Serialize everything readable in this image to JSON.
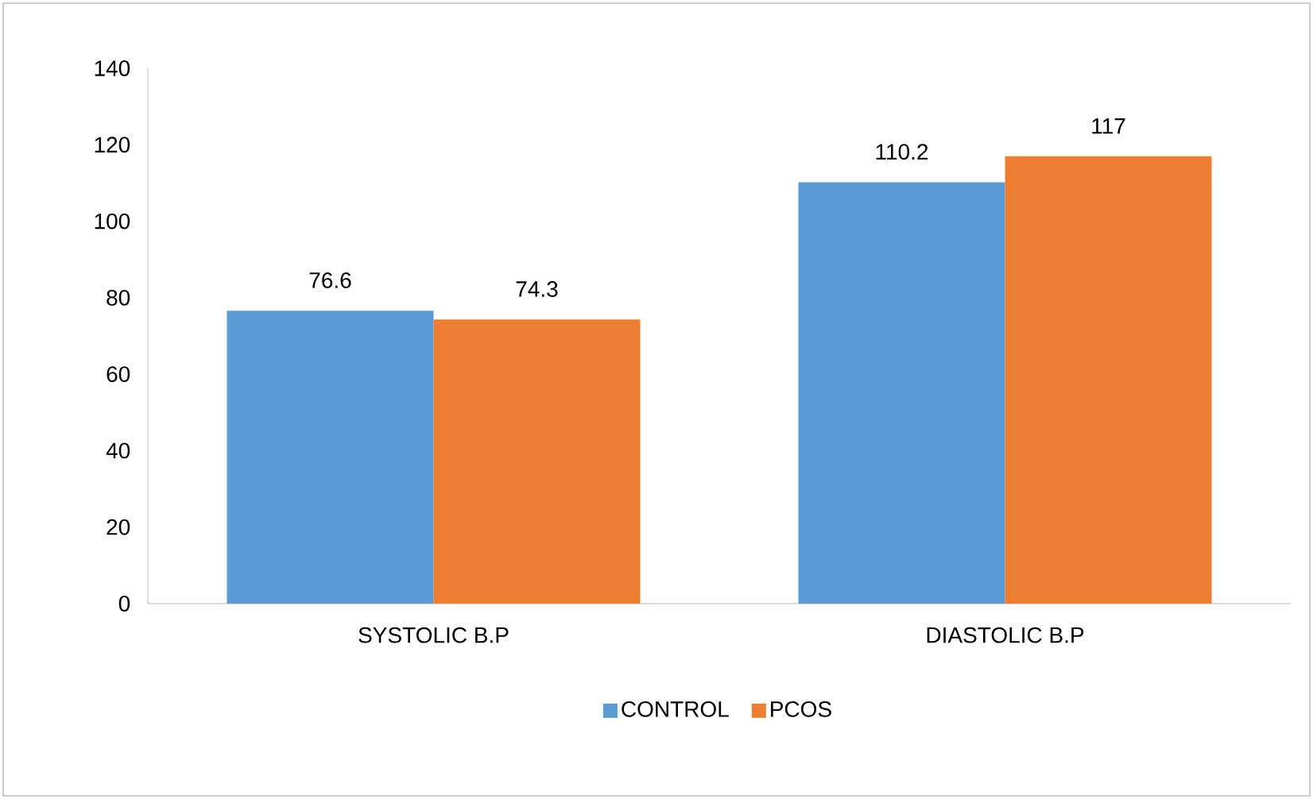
{
  "chart_data": {
    "type": "bar",
    "categories": [
      "SYSTOLIC B.P",
      "DIASTOLIC B.P"
    ],
    "series": [
      {
        "name": "CONTROL",
        "color": "#5b9bd5",
        "values": [
          76.6,
          110.2
        ]
      },
      {
        "name": "PCOS",
        "color": "#ed7d31",
        "values": [
          74.3,
          117
        ]
      }
    ],
    "ylim": [
      0,
      140
    ],
    "yticks": [
      0,
      20,
      40,
      60,
      80,
      100,
      120,
      140
    ],
    "data_labels": true,
    "legend": "bottom",
    "grid": false
  }
}
